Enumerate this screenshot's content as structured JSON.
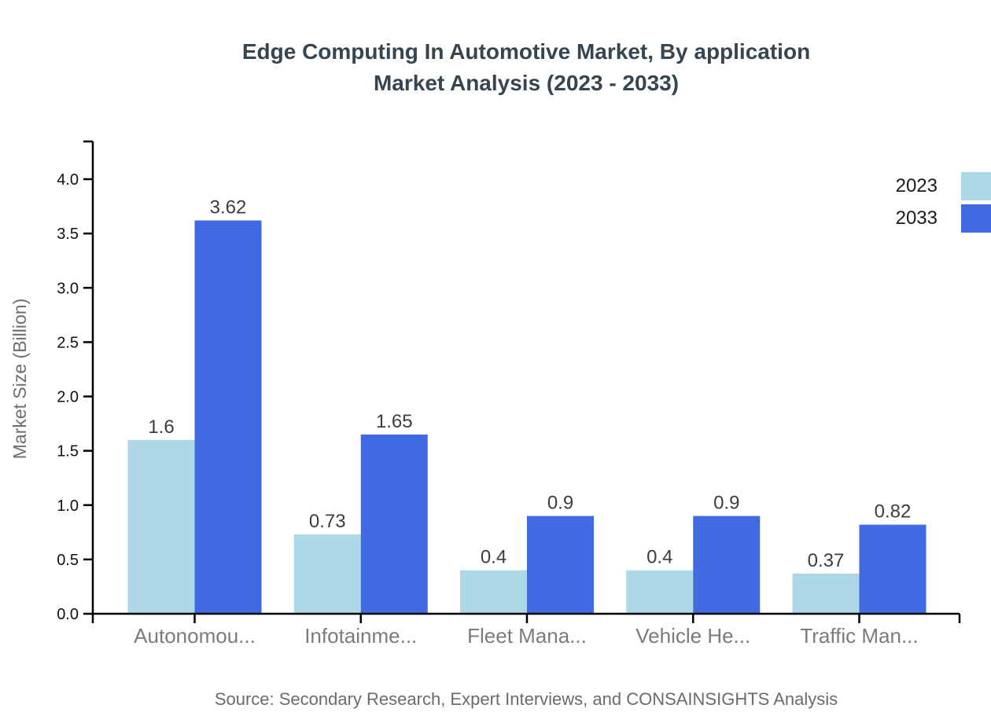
{
  "header": {
    "title_line1": "Edge Computing In Automotive Market, By application",
    "title_line2": "Market Analysis (2023 - 2033)"
  },
  "footer": {
    "source": "Source: Secondary Research, Expert Interviews, and CONSAINSIGHTS Analysis"
  },
  "chart_data": {
    "type": "bar",
    "title": "Edge Computing In Automotive Market, By application Market Analysis (2023 - 2033)",
    "categories": [
      "Autonomou...",
      "Infotainme...",
      "Fleet Mana...",
      "Vehicle He...",
      "Traffic Man..."
    ],
    "series": [
      {
        "name": "2023",
        "color": "#ADD8E6",
        "values": [
          1.6,
          0.73,
          0.4,
          0.4,
          0.37
        ]
      },
      {
        "name": "2033",
        "color": "#4169E1",
        "values": [
          3.62,
          1.65,
          0.9,
          0.9,
          0.82
        ]
      }
    ],
    "ylabel": "Market Size (Billion)",
    "xlabel": "",
    "ylim": [
      0,
      4.0
    ],
    "ytick_step": 0.5,
    "grid": false,
    "legend_position": "top-right",
    "value_labels": true
  }
}
